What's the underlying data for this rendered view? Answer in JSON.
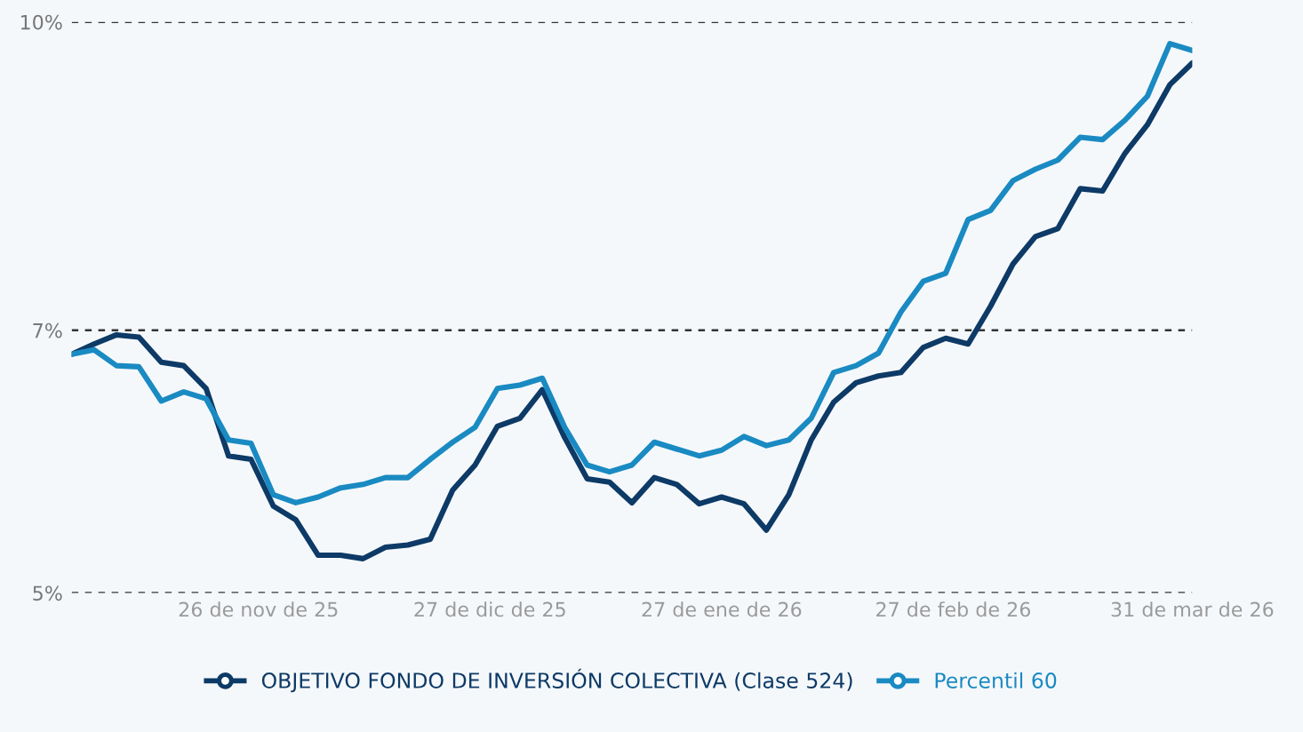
{
  "chart_data": {
    "type": "line",
    "x": [
      "2025-11-01",
      "2025-11-04",
      "2025-11-07",
      "2025-11-10",
      "2025-11-13",
      "2025-11-16",
      "2025-11-19",
      "2025-11-22",
      "2025-11-25",
      "2025-11-28",
      "2025-12-01",
      "2025-12-04",
      "2025-12-07",
      "2025-12-10",
      "2025-12-13",
      "2025-12-16",
      "2025-12-19",
      "2025-12-22",
      "2025-12-25",
      "2025-12-28",
      "2025-12-31",
      "2026-01-03",
      "2026-01-06",
      "2026-01-09",
      "2026-01-12",
      "2026-01-15",
      "2026-01-18",
      "2026-01-21",
      "2026-01-24",
      "2026-01-27",
      "2026-01-30",
      "2026-02-02",
      "2026-02-05",
      "2026-02-08",
      "2026-02-11",
      "2026-02-14",
      "2026-02-17",
      "2026-02-20",
      "2026-02-23",
      "2026-02-26",
      "2026-03-01",
      "2026-03-04",
      "2026-03-07",
      "2026-03-10",
      "2026-03-13",
      "2026-03-16",
      "2026-03-19",
      "2026-03-22",
      "2026-03-25",
      "2026-03-28",
      "2026-03-31"
    ],
    "series": [
      {
        "name": "OBJETIVO FONDO DE INVERSIÓN COLECTIVA (Clase 524)",
        "color": "#0d3a66",
        "values": [
          7.09,
          7.18,
          7.26,
          7.24,
          7.02,
          6.99,
          6.79,
          6.2,
          6.17,
          5.76,
          5.64,
          5.33,
          5.33,
          5.3,
          5.4,
          5.42,
          5.47,
          5.9,
          6.12,
          6.46,
          6.53,
          6.78,
          6.36,
          6.0,
          5.97,
          5.79,
          6.01,
          5.95,
          5.78,
          5.84,
          5.78,
          5.55,
          5.86,
          6.34,
          6.67,
          6.84,
          6.9,
          6.93,
          7.15,
          7.23,
          7.18,
          7.51,
          7.88,
          8.12,
          8.19,
          8.54,
          8.52,
          8.85,
          9.1,
          9.45,
          9.64
        ]
      },
      {
        "name": "Percentil 60",
        "color": "#1a8ac2",
        "values": [
          7.09,
          7.13,
          6.99,
          6.98,
          6.68,
          6.76,
          6.7,
          6.34,
          6.31,
          5.86,
          5.79,
          5.84,
          5.92,
          5.95,
          6.01,
          6.01,
          6.17,
          6.32,
          6.45,
          6.79,
          6.82,
          6.88,
          6.45,
          6.12,
          6.06,
          6.12,
          6.32,
          6.26,
          6.2,
          6.25,
          6.37,
          6.29,
          6.34,
          6.53,
          6.93,
          6.99,
          7.1,
          7.46,
          7.73,
          7.8,
          8.27,
          8.35,
          8.61,
          8.71,
          8.79,
          8.99,
          8.97,
          9.14,
          9.35,
          9.81,
          9.75
        ]
      }
    ],
    "xlim": [
      "2025-11-01",
      "2026-03-31"
    ],
    "xticks": [
      {
        "value": "2025-11-26",
        "label": "26 de nov de 25"
      },
      {
        "value": "2025-12-27",
        "label": "27 de dic de 25"
      },
      {
        "value": "2026-01-27",
        "label": "27 de ene de 26"
      },
      {
        "value": "2026-02-27",
        "label": "27 de feb de 26"
      },
      {
        "value": "2026-03-31",
        "label": "31 de mar de 26"
      }
    ],
    "ylim": [
      5,
      10
    ],
    "yticks": [
      {
        "value": 5,
        "label": "5%"
      },
      {
        "value": 7.3,
        "label": "7%"
      },
      {
        "value": 10,
        "label": "10%"
      }
    ],
    "grid": "y",
    "legend": "bottom",
    "line_style": "solid"
  }
}
